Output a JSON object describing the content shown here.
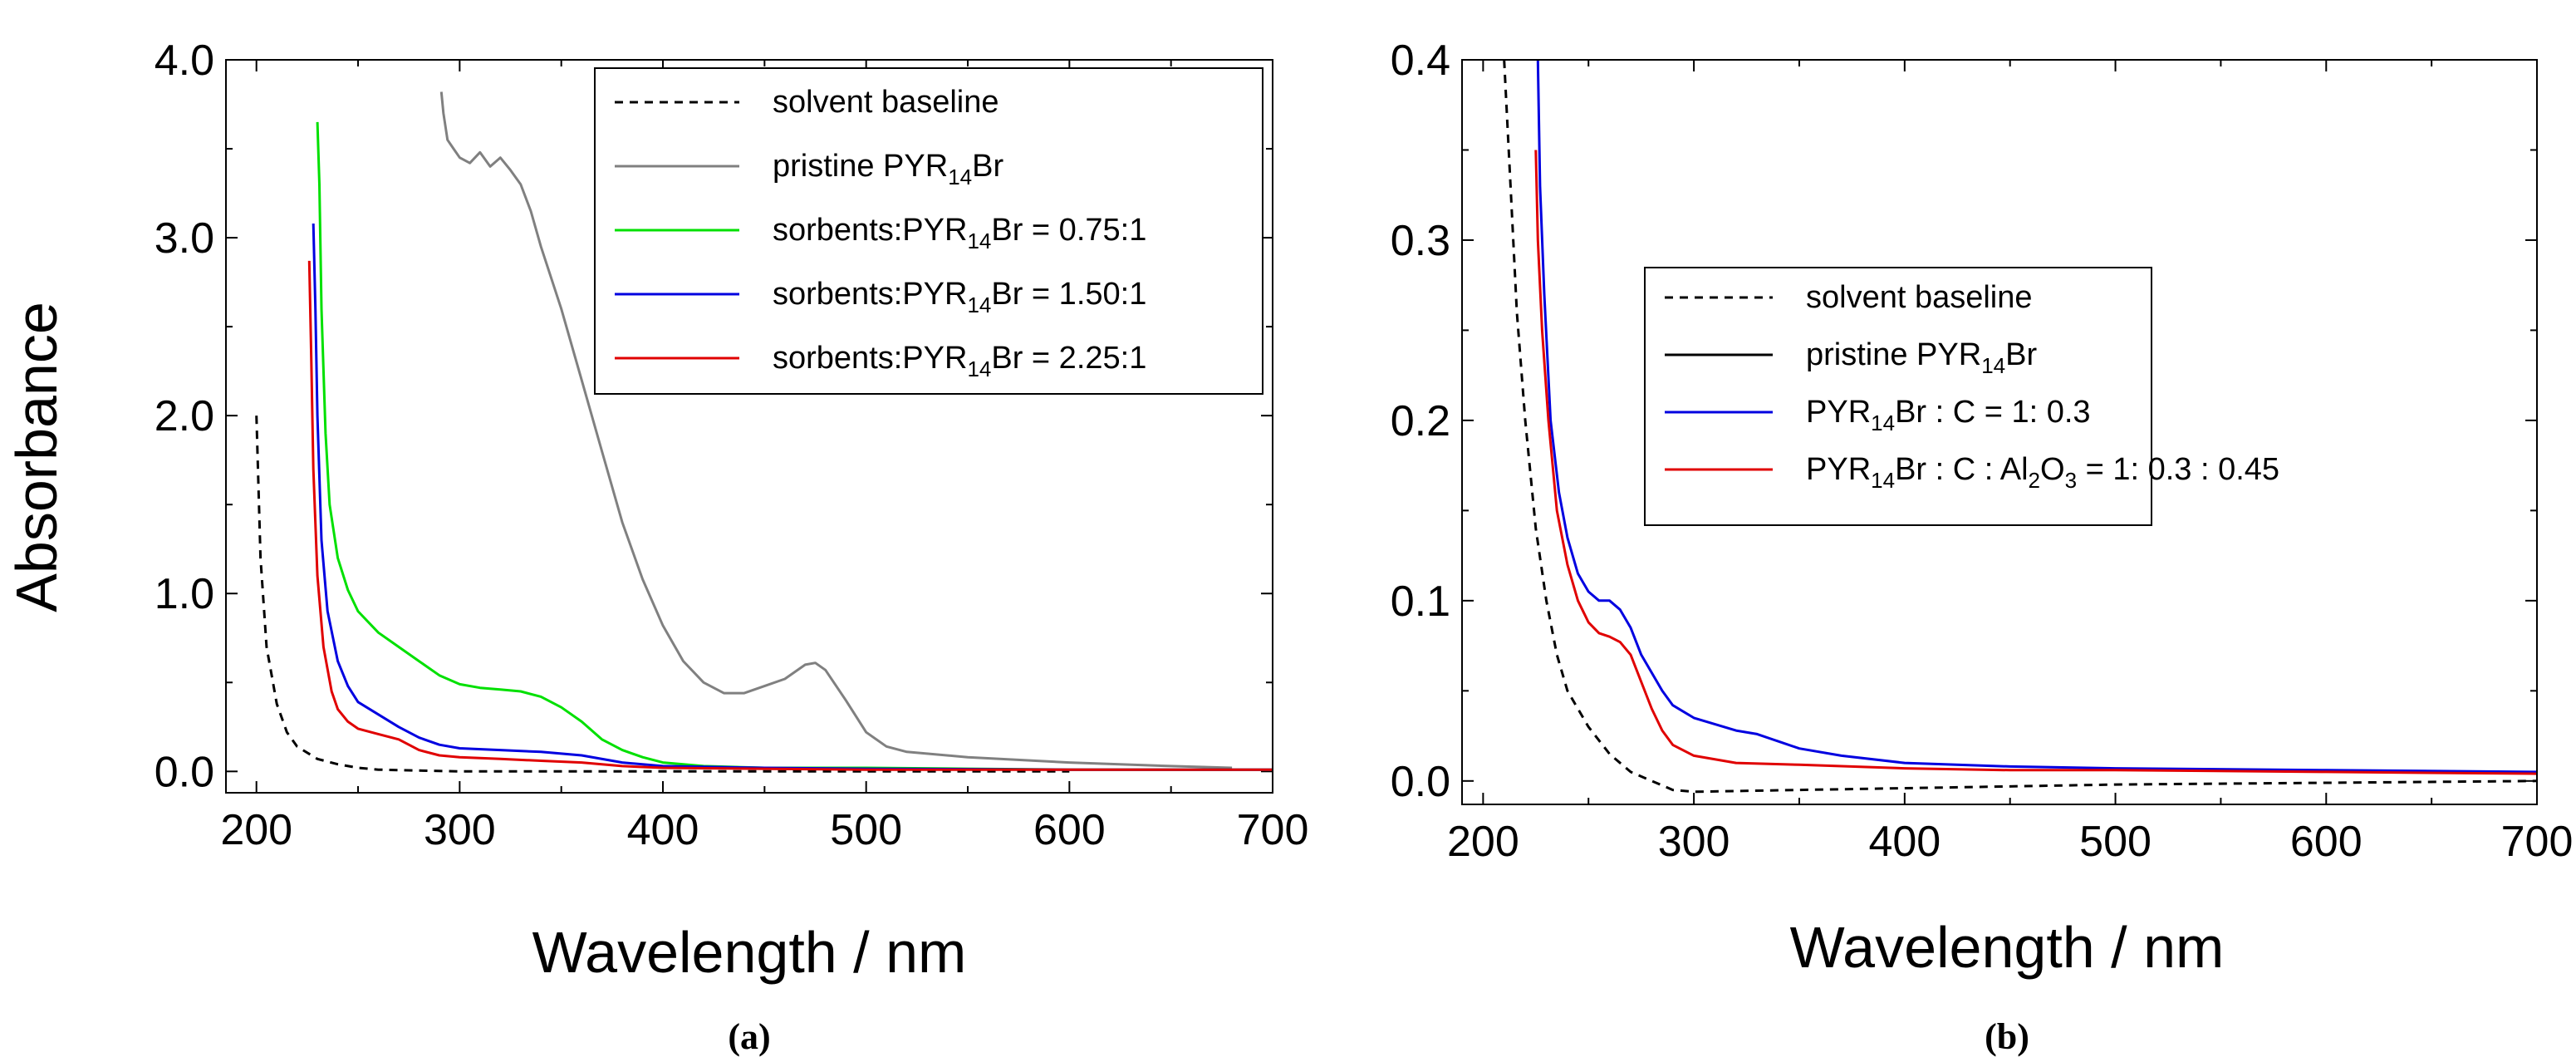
{
  "chart_data": [
    {
      "type": "line",
      "panel_label": "(a)",
      "xlabel": "Wavelength / nm",
      "ylabel": "Absorbance",
      "xlim": [
        185,
        700
      ],
      "ylim": [
        -0.12,
        4.0
      ],
      "xticks": [
        "200",
        "300",
        "400",
        "500",
        "600",
        "700"
      ],
      "xtick_values": [
        200,
        300,
        400,
        500,
        600,
        700
      ],
      "yticks": [
        "0.0",
        "1.0",
        "2.0",
        "3.0",
        "4.0"
      ],
      "ytick_values": [
        0,
        1,
        2,
        3,
        4
      ],
      "legend_position": "top-right",
      "series": [
        {
          "key": "solvent",
          "name": "solvent baseline",
          "name_sub": "",
          "name_after": "",
          "color": "#000000",
          "dash": true,
          "points": [
            [
              200,
              2.0
            ],
            [
              202,
              1.2
            ],
            [
              205,
              0.7
            ],
            [
              210,
              0.38
            ],
            [
              215,
              0.22
            ],
            [
              220,
              0.14
            ],
            [
              230,
              0.07
            ],
            [
              240,
              0.04
            ],
            [
              250,
              0.02
            ],
            [
              260,
              0.01
            ],
            [
              300,
              0.0
            ],
            [
              400,
              0.0
            ],
            [
              500,
              0.0
            ],
            [
              600,
              0.0
            ]
          ]
        },
        {
          "key": "pristine",
          "name": "pristine PYR",
          "name_sub": "14",
          "name_after": "Br",
          "color": "#808080",
          "dash": false,
          "points": [
            [
              291,
              3.82
            ],
            [
              292,
              3.7
            ],
            [
              294,
              3.55
            ],
            [
              297,
              3.5
            ],
            [
              300,
              3.45
            ],
            [
              305,
              3.42
            ],
            [
              310,
              3.48
            ],
            [
              315,
              3.4
            ],
            [
              320,
              3.45
            ],
            [
              325,
              3.38
            ],
            [
              330,
              3.3
            ],
            [
              335,
              3.15
            ],
            [
              340,
              2.95
            ],
            [
              350,
              2.6
            ],
            [
              360,
              2.2
            ],
            [
              370,
              1.8
            ],
            [
              380,
              1.4
            ],
            [
              390,
              1.08
            ],
            [
              400,
              0.82
            ],
            [
              410,
              0.62
            ],
            [
              420,
              0.5
            ],
            [
              430,
              0.44
            ],
            [
              440,
              0.44
            ],
            [
              450,
              0.48
            ],
            [
              460,
              0.52
            ],
            [
              470,
              0.6
            ],
            [
              475,
              0.61
            ],
            [
              480,
              0.57
            ],
            [
              490,
              0.4
            ],
            [
              500,
              0.22
            ],
            [
              510,
              0.14
            ],
            [
              520,
              0.11
            ],
            [
              550,
              0.08
            ],
            [
              600,
              0.05
            ],
            [
              650,
              0.03
            ],
            [
              680,
              0.02
            ]
          ]
        },
        {
          "key": "r075",
          "name": "sorbents:PYR",
          "name_sub": "14",
          "name_after": "Br = 0.75:1",
          "color": "#00e000",
          "dash": false,
          "points": [
            [
              230,
              3.65
            ],
            [
              231,
              3.3
            ],
            [
              232,
              2.6
            ],
            [
              234,
              1.9
            ],
            [
              236,
              1.5
            ],
            [
              240,
              1.2
            ],
            [
              245,
              1.02
            ],
            [
              250,
              0.9
            ],
            [
              260,
              0.78
            ],
            [
              270,
              0.7
            ],
            [
              280,
              0.62
            ],
            [
              290,
              0.54
            ],
            [
              300,
              0.49
            ],
            [
              310,
              0.47
            ],
            [
              320,
              0.46
            ],
            [
              330,
              0.45
            ],
            [
              340,
              0.42
            ],
            [
              350,
              0.36
            ],
            [
              360,
              0.28
            ],
            [
              370,
              0.18
            ],
            [
              380,
              0.12
            ],
            [
              390,
              0.08
            ],
            [
              400,
              0.05
            ],
            [
              420,
              0.03
            ],
            [
              450,
              0.02
            ],
            [
              500,
              0.02
            ],
            [
              550,
              0.015
            ],
            [
              600,
              0.01
            ],
            [
              700,
              0.01
            ]
          ]
        },
        {
          "key": "r150",
          "name": "sorbents:PYR",
          "name_sub": "14",
          "name_after": "Br = 1.50:1",
          "color": "#0000e0",
          "dash": false,
          "points": [
            [
              228,
              3.08
            ],
            [
              229,
              2.6
            ],
            [
              230,
              2.0
            ],
            [
              232,
              1.3
            ],
            [
              235,
              0.9
            ],
            [
              240,
              0.62
            ],
            [
              245,
              0.48
            ],
            [
              250,
              0.39
            ],
            [
              260,
              0.32
            ],
            [
              270,
              0.25
            ],
            [
              280,
              0.19
            ],
            [
              290,
              0.15
            ],
            [
              300,
              0.13
            ],
            [
              320,
              0.12
            ],
            [
              340,
              0.11
            ],
            [
              360,
              0.09
            ],
            [
              380,
              0.05
            ],
            [
              400,
              0.03
            ],
            [
              450,
              0.02
            ],
            [
              500,
              0.015
            ],
            [
              600,
              0.01
            ],
            [
              700,
              0.01
            ]
          ]
        },
        {
          "key": "r225",
          "name": "sorbents:PYR",
          "name_sub": "14",
          "name_after": "Br = 2.25:1",
          "color": "#e00000",
          "dash": false,
          "points": [
            [
              226,
              2.87
            ],
            [
              227,
              2.3
            ],
            [
              228,
              1.7
            ],
            [
              230,
              1.1
            ],
            [
              233,
              0.7
            ],
            [
              237,
              0.45
            ],
            [
              240,
              0.35
            ],
            [
              245,
              0.28
            ],
            [
              250,
              0.24
            ],
            [
              260,
              0.21
            ],
            [
              270,
              0.18
            ],
            [
              280,
              0.12
            ],
            [
              290,
              0.09
            ],
            [
              300,
              0.08
            ],
            [
              320,
              0.07
            ],
            [
              340,
              0.06
            ],
            [
              360,
              0.05
            ],
            [
              380,
              0.03
            ],
            [
              400,
              0.02
            ],
            [
              500,
              0.01
            ],
            [
              700,
              0.01
            ]
          ]
        }
      ]
    },
    {
      "type": "line",
      "panel_label": "(b)",
      "xlabel": "Wavelength / nm",
      "ylabel": "",
      "xlim": [
        190,
        700
      ],
      "ylim": [
        -0.013,
        0.4
      ],
      "xticks": [
        "200",
        "300",
        "400",
        "500",
        "600",
        "700"
      ],
      "xtick_values": [
        200,
        300,
        400,
        500,
        600,
        700
      ],
      "yticks": [
        "0.0",
        "0.1",
        "0.2",
        "0.3",
        "0.4"
      ],
      "ytick_values": [
        0,
        0.1,
        0.2,
        0.3,
        0.4
      ],
      "legend_position": "upper-right",
      "series": [
        {
          "key": "solvent",
          "name": "solvent baseline",
          "name_sub": "",
          "name_after": "",
          "color": "#000000",
          "dash": true,
          "points": [
            [
              210,
              0.4
            ],
            [
              213,
              0.33
            ],
            [
              216,
              0.26
            ],
            [
              220,
              0.2
            ],
            [
              225,
              0.14
            ],
            [
              230,
              0.1
            ],
            [
              235,
              0.07
            ],
            [
              240,
              0.05
            ],
            [
              250,
              0.03
            ],
            [
              260,
              0.015
            ],
            [
              270,
              0.005
            ],
            [
              280,
              0.0
            ],
            [
              290,
              -0.005
            ],
            [
              300,
              -0.006
            ],
            [
              350,
              -0.005
            ],
            [
              400,
              -0.004
            ],
            [
              500,
              -0.002
            ],
            [
              600,
              -0.001
            ],
            [
              700,
              0.0
            ]
          ]
        },
        {
          "key": "pristine",
          "name": "pristine PYR",
          "name_sub": "14",
          "name_after": "Br",
          "color": "#000000",
          "dash": false,
          "points": []
        },
        {
          "key": "c",
          "name": "PYR",
          "name_sub": "14",
          "name_after": "Br : C           = 1: 0.3",
          "color": "#0000e0",
          "dash": false,
          "points": [
            [
              226,
              0.4
            ],
            [
              227,
              0.33
            ],
            [
              229,
              0.27
            ],
            [
              232,
              0.2
            ],
            [
              236,
              0.16
            ],
            [
              240,
              0.135
            ],
            [
              245,
              0.115
            ],
            [
              250,
              0.105
            ],
            [
              255,
              0.1
            ],
            [
              260,
              0.1
            ],
            [
              265,
              0.095
            ],
            [
              270,
              0.085
            ],
            [
              275,
              0.07
            ],
            [
              280,
              0.06
            ],
            [
              285,
              0.05
            ],
            [
              290,
              0.042
            ],
            [
              300,
              0.035
            ],
            [
              320,
              0.028
            ],
            [
              330,
              0.026
            ],
            [
              340,
              0.022
            ],
            [
              350,
              0.018
            ],
            [
              370,
              0.014
            ],
            [
              400,
              0.01
            ],
            [
              450,
              0.008
            ],
            [
              500,
              0.007
            ],
            [
              600,
              0.006
            ],
            [
              700,
              0.005
            ]
          ]
        },
        {
          "key": "cal",
          "name": "PYR",
          "name_sub": "14",
          "name_after": "Br : C : Al",
          "name_sub2": "2",
          "name_after2": "O",
          "name_sub3": "3",
          "name_after3": " = 1: 0.3 : 0.45",
          "color": "#e00000",
          "dash": false,
          "points": [
            [
              225,
              0.35
            ],
            [
              226,
              0.3
            ],
            [
              228,
              0.25
            ],
            [
              231,
              0.2
            ],
            [
              235,
              0.15
            ],
            [
              240,
              0.12
            ],
            [
              245,
              0.1
            ],
            [
              250,
              0.088
            ],
            [
              255,
              0.082
            ],
            [
              260,
              0.08
            ],
            [
              265,
              0.077
            ],
            [
              270,
              0.07
            ],
            [
              275,
              0.055
            ],
            [
              280,
              0.04
            ],
            [
              285,
              0.028
            ],
            [
              290,
              0.02
            ],
            [
              300,
              0.014
            ],
            [
              320,
              0.01
            ],
            [
              350,
              0.009
            ],
            [
              400,
              0.007
            ],
            [
              450,
              0.006
            ],
            [
              500,
              0.006
            ],
            [
              600,
              0.005
            ],
            [
              700,
              0.004
            ]
          ]
        }
      ]
    }
  ]
}
